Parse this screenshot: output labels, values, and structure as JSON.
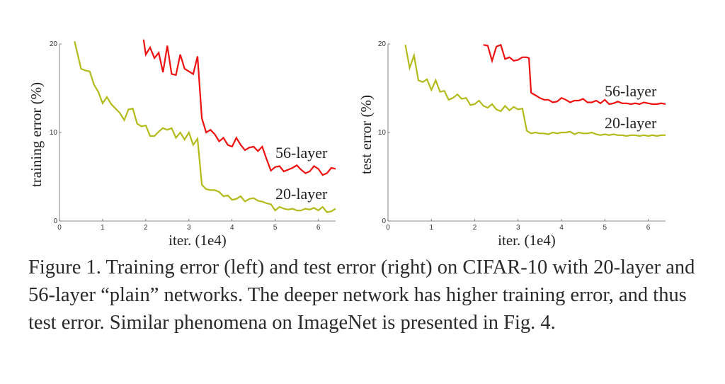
{
  "chart_data": [
    {
      "type": "line",
      "xlabel": "iter. (1e4)",
      "ylabel": "training error (%)",
      "xlim": [
        0,
        6.4
      ],
      "ylim": [
        0,
        20
      ],
      "xticks": [
        "0",
        "1",
        "2",
        "3",
        "4",
        "5",
        "6"
      ],
      "yticks": [
        "0",
        "10",
        "20"
      ],
      "grid": false,
      "series": [
        {
          "name": "56-layer",
          "color": "#ee1111",
          "x": [
            1.95,
            2.0,
            2.1,
            2.2,
            2.3,
            2.4,
            2.5,
            2.6,
            2.7,
            2.8,
            2.9,
            3.0,
            3.1,
            3.2,
            3.3,
            3.4,
            3.5,
            3.6,
            3.7,
            3.8,
            3.9,
            4.0,
            4.1,
            4.2,
            4.3,
            4.4,
            4.5,
            4.6,
            4.7,
            4.8,
            4.9,
            5.0,
            5.1,
            5.2,
            5.3,
            5.4,
            5.5,
            5.6,
            5.7,
            5.8,
            5.9,
            6.0,
            6.1,
            6.2,
            6.3,
            6.4
          ],
          "values": [
            20.5,
            18.8,
            19.6,
            18.4,
            19.0,
            16.8,
            19.8,
            16.6,
            16.5,
            18.8,
            17.2,
            16.9,
            16.6,
            18.6,
            11.6,
            10.0,
            10.3,
            9.8,
            9.0,
            9.4,
            8.6,
            8.4,
            9.4,
            8.6,
            8.0,
            8.3,
            8.4,
            7.9,
            8.4,
            7.0,
            5.7,
            6.1,
            6.2,
            5.6,
            5.8,
            6.0,
            6.3,
            5.8,
            5.4,
            5.6,
            6.2,
            5.9,
            5.2,
            5.4,
            6.0,
            5.9
          ]
        },
        {
          "name": "20-layer",
          "color": "#b2bb1a",
          "x": [
            0.35,
            0.5,
            0.6,
            0.7,
            0.8,
            0.9,
            1.0,
            1.1,
            1.2,
            1.3,
            1.4,
            1.5,
            1.6,
            1.7,
            1.8,
            1.9,
            2.0,
            2.1,
            2.2,
            2.3,
            2.4,
            2.5,
            2.6,
            2.7,
            2.8,
            2.9,
            3.0,
            3.1,
            3.2,
            3.3,
            3.4,
            3.5,
            3.6,
            3.7,
            3.8,
            3.9,
            4.0,
            4.1,
            4.2,
            4.3,
            4.4,
            4.5,
            4.6,
            4.7,
            4.8,
            4.9,
            5.0,
            5.1,
            5.2,
            5.3,
            5.4,
            5.5,
            5.6,
            5.7,
            5.8,
            5.9,
            6.0,
            6.1,
            6.2,
            6.3,
            6.4
          ],
          "values": [
            20.3,
            17.2,
            17.0,
            16.9,
            15.4,
            14.6,
            13.3,
            14.0,
            13.2,
            12.7,
            12.2,
            11.4,
            12.6,
            12.7,
            11.0,
            10.7,
            10.8,
            9.6,
            9.6,
            10.1,
            10.5,
            10.3,
            10.5,
            9.4,
            10.0,
            9.2,
            10.0,
            8.6,
            9.3,
            4.1,
            3.6,
            3.5,
            3.5,
            3.3,
            2.8,
            2.9,
            2.4,
            2.5,
            2.8,
            2.2,
            2.5,
            2.6,
            2.3,
            2.2,
            2.0,
            1.9,
            1.2,
            1.6,
            1.4,
            1.3,
            1.4,
            1.2,
            1.2,
            1.4,
            1.3,
            1.5,
            1.2,
            1.6,
            1.0,
            1.1,
            1.4
          ]
        }
      ]
    },
    {
      "type": "line",
      "xlabel": "iter. (1e4)",
      "ylabel": "test error (%)",
      "xlim": [
        0,
        6.4
      ],
      "ylim": [
        0,
        20
      ],
      "xticks": [
        "0",
        "1",
        "2",
        "3",
        "4",
        "5",
        "6"
      ],
      "yticks": [
        "0",
        "10",
        "20"
      ],
      "grid": false,
      "series": [
        {
          "name": "56-layer",
          "color": "#ee1111",
          "x": [
            2.2,
            2.3,
            2.4,
            2.5,
            2.6,
            2.7,
            2.8,
            2.9,
            3.0,
            3.1,
            3.2,
            3.25,
            3.3,
            3.4,
            3.5,
            3.6,
            3.7,
            3.8,
            3.9,
            4.0,
            4.1,
            4.2,
            4.3,
            4.4,
            4.5,
            4.6,
            4.7,
            4.8,
            4.9,
            5.0,
            5.1,
            5.2,
            5.3,
            5.4,
            5.5,
            5.6,
            5.7,
            5.8,
            5.9,
            6.0,
            6.1,
            6.2,
            6.3,
            6.4
          ],
          "values": [
            19.9,
            19.8,
            18.1,
            19.7,
            19.9,
            18.3,
            18.5,
            18.1,
            18.2,
            18.5,
            18.5,
            18.4,
            14.5,
            14.2,
            13.9,
            13.7,
            13.7,
            13.4,
            13.5,
            13.9,
            13.7,
            13.4,
            13.6,
            13.6,
            13.8,
            13.4,
            13.4,
            13.6,
            13.3,
            13.7,
            13.2,
            13.3,
            13.5,
            13.3,
            13.3,
            13.2,
            13.3,
            13.2,
            13.4,
            13.3,
            13.2,
            13.2,
            13.3,
            13.2
          ]
        },
        {
          "name": "20-layer",
          "color": "#b2bb1a",
          "x": [
            0.4,
            0.5,
            0.6,
            0.7,
            0.8,
            0.9,
            1.0,
            1.1,
            1.2,
            1.3,
            1.4,
            1.5,
            1.6,
            1.7,
            1.8,
            1.9,
            2.0,
            2.1,
            2.2,
            2.3,
            2.4,
            2.5,
            2.6,
            2.7,
            2.8,
            2.9,
            3.0,
            3.1,
            3.2,
            3.3,
            3.4,
            3.5,
            3.6,
            3.7,
            3.8,
            3.9,
            4.0,
            4.1,
            4.2,
            4.3,
            4.4,
            4.5,
            4.6,
            4.7,
            4.8,
            4.9,
            5.0,
            5.1,
            5.2,
            5.3,
            5.4,
            5.5,
            5.6,
            5.7,
            5.8,
            5.9,
            6.0,
            6.1,
            6.2,
            6.3,
            6.4
          ],
          "values": [
            19.9,
            17.3,
            18.7,
            15.9,
            15.7,
            16.0,
            14.8,
            15.9,
            14.6,
            14.7,
            13.7,
            13.9,
            14.3,
            13.8,
            13.9,
            13.1,
            13.2,
            13.6,
            13.0,
            12.8,
            13.2,
            12.6,
            12.4,
            13.0,
            12.5,
            12.9,
            12.6,
            12.7,
            10.2,
            9.9,
            10.0,
            9.9,
            9.9,
            9.8,
            10.0,
            9.9,
            10.0,
            10.0,
            10.1,
            9.8,
            10.0,
            9.9,
            9.9,
            10.0,
            9.8,
            9.7,
            9.8,
            9.7,
            9.8,
            9.7,
            9.7,
            9.6,
            9.7,
            9.7,
            9.6,
            9.7,
            9.6,
            9.7,
            9.6,
            9.7,
            9.7
          ]
        }
      ]
    }
  ],
  "caption": "Figure 1. Training error (left) and test error (right) on CIFAR-10 with 20-layer and 56-layer “plain” networks. The deeper network has higher training error, and thus test error.  Similar phenomena on ImageNet is presented in Fig. 4."
}
